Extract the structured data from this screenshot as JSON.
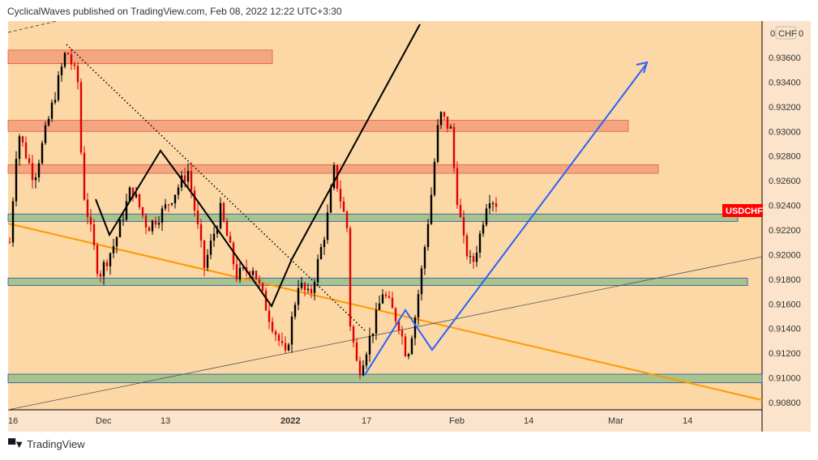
{
  "header": {
    "text": "CyclicalWaves published on TradingView.com, Feb 08, 2022 12:22 UTC+3:30"
  },
  "footer": {
    "brand": "TradingView",
    "logo": "TV"
  },
  "chart_data": {
    "type": "candlestick",
    "symbol": "USDCHF",
    "currency_label": "CHF",
    "currency_corner": [
      "0",
      "0"
    ],
    "last_price": 0.9236,
    "ylim": [
      0.9072,
      0.9382
    ],
    "y_ticks": [
      "0.93600",
      "0.93400",
      "0.93200",
      "0.93000",
      "0.92800",
      "0.92600",
      "0.92400",
      "0.92200",
      "0.92000",
      "0.91800",
      "0.91600",
      "0.91400",
      "0.91200",
      "0.91000",
      "0.90800"
    ],
    "x_ticks": [
      {
        "label": "16",
        "bar": 0
      },
      {
        "label": "Dec",
        "bar": 28
      },
      {
        "label": "13",
        "bar": 48
      },
      {
        "label": "2022",
        "bar": 85,
        "bold": true
      },
      {
        "label": "17",
        "bar": 110
      },
      {
        "label": "Feb",
        "bar": 137
      },
      {
        "label": "14",
        "bar": 160
      },
      {
        "label": "Mar",
        "bar": 186
      },
      {
        "label": "14",
        "bar": 209
      }
    ],
    "price_path": [
      [
        0,
        0.921
      ],
      [
        2.5,
        0.9301
      ],
      [
        7.5,
        0.9262
      ],
      [
        12.5,
        0.9315
      ],
      [
        17.5,
        0.9367
      ],
      [
        21,
        0.934
      ],
      [
        22.5,
        0.9255
      ],
      [
        27.5,
        0.9183
      ],
      [
        32.5,
        0.921
      ],
      [
        37.5,
        0.9255
      ],
      [
        42.5,
        0.9222
      ],
      [
        47.5,
        0.9236
      ],
      [
        55,
        0.9268
      ],
      [
        60,
        0.919
      ],
      [
        65,
        0.9236
      ],
      [
        70,
        0.9183
      ],
      [
        75,
        0.919
      ],
      [
        80,
        0.915
      ],
      [
        85,
        0.9117
      ],
      [
        89,
        0.9177
      ],
      [
        92.5,
        0.9165
      ],
      [
        97.5,
        0.9222
      ],
      [
        100,
        0.9268
      ],
      [
        104,
        0.9222
      ],
      [
        105,
        0.9144
      ],
      [
        107.5,
        0.9104
      ],
      [
        112.5,
        0.9144
      ],
      [
        115,
        0.917
      ],
      [
        120,
        0.9144
      ],
      [
        122.5,
        0.9117
      ],
      [
        125,
        0.915
      ],
      [
        127.5,
        0.9196
      ],
      [
        130,
        0.9249
      ],
      [
        132.5,
        0.9315
      ],
      [
        136,
        0.9301
      ],
      [
        137.5,
        0.9255
      ],
      [
        140,
        0.921
      ],
      [
        142.5,
        0.919
      ],
      [
        145,
        0.9216
      ],
      [
        147.5,
        0.9249
      ],
      [
        150,
        0.9242
      ]
    ],
    "zones": [
      {
        "top": 0.9366,
        "bottom": 0.9355,
        "color": "#f4a582"
      },
      {
        "top": 0.9309,
        "bottom": 0.93,
        "color": "#f4a582"
      },
      {
        "top": 0.9273,
        "bottom": 0.9266,
        "color": "#f4a582"
      },
      {
        "top": 0.9233,
        "bottom": 0.9227,
        "color": "#a8c48a"
      },
      {
        "top": 0.9181,
        "bottom": 0.9175,
        "color": "#a8c48a"
      },
      {
        "top": 0.9103,
        "bottom": 0.9096,
        "color": "#a8c48a"
      }
    ],
    "colors": {
      "up": "#000000",
      "down": "#e00000",
      "bg": "#fcd8a6",
      "axis_bg": "#fbe4cb",
      "label": "#ff0000"
    }
  }
}
